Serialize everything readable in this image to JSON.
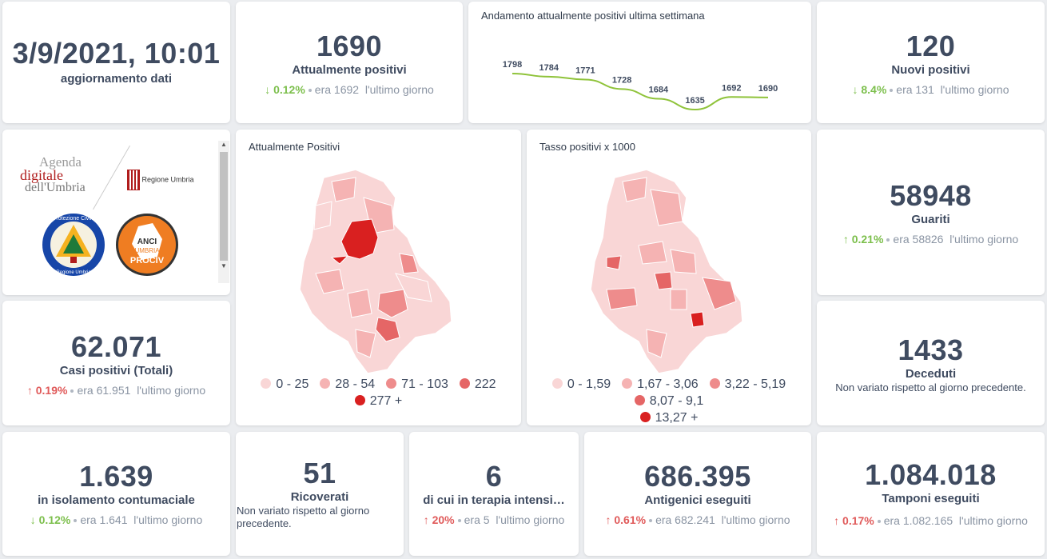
{
  "update": {
    "datetime": "3/9/2021, 10:01",
    "label": "aggiornamento dati"
  },
  "positivi": {
    "value": "1690",
    "label": "Attualmente positivi",
    "pct": "0.12%",
    "prev": "era 1692",
    "period": "l'ultimo giorno",
    "trend": "down"
  },
  "weekly": {
    "title": "Andamento attualmente positivi ultima settimana",
    "chart_data": {
      "type": "line",
      "values": [
        1798,
        1784,
        1771,
        1728,
        1684,
        1635,
        1692,
        1690
      ],
      "color": "#8fc33a"
    }
  },
  "nuovi": {
    "value": "120",
    "label": "Nuovi positivi",
    "pct": "8.4%",
    "prev": "era 131",
    "period": "l'ultimo giorno",
    "trend": "down"
  },
  "logos": {
    "agenda_line1": "Agenda",
    "agenda_line2": "digitale",
    "agenda_line3": "dell'Umbria",
    "regione": "Regione Umbria",
    "protezione": "Protezione Civile",
    "protezione_sub": "Regione Umbria",
    "anci_line1": "ANCI",
    "anci_line2": "UMBRIA",
    "anci_line3": "PROCIV"
  },
  "map1": {
    "title": "Attualmente Positivi",
    "legend": [
      {
        "label": "0 - 25",
        "color": "#f9d6d6"
      },
      {
        "label": "28 - 54",
        "color": "#f5b3b3"
      },
      {
        "label": "71 - 103",
        "color": "#ee8c8c"
      },
      {
        "label": "222",
        "color": "#e56666"
      },
      {
        "label": "277 +",
        "color": "#d92020"
      }
    ]
  },
  "map2": {
    "title": "Tasso positivi x 1000",
    "legend": [
      {
        "label": "0 - 1,59",
        "color": "#f9d6d6"
      },
      {
        "label": "1,67 - 3,06",
        "color": "#f5b3b3"
      },
      {
        "label": "3,22 - 5,19",
        "color": "#ee8c8c"
      },
      {
        "label": "8,07 - 9,1",
        "color": "#e56666"
      },
      {
        "label": "13,27 +",
        "color": "#d92020"
      }
    ]
  },
  "guariti": {
    "value": "58948",
    "label": "Guariti",
    "pct": "0.21%",
    "prev": "era 58826",
    "period": "l'ultimo giorno",
    "trend": "up-green"
  },
  "casi": {
    "value": "62.071",
    "label": "Casi positivi (Totali)",
    "pct": "0.19%",
    "prev": "era 61.951",
    "period": "l'ultimo giorno",
    "trend": "up"
  },
  "deceduti": {
    "value": "1433",
    "label": "Deceduti",
    "note": "Non variato rispetto al giorno precedente."
  },
  "isolamento": {
    "value": "1.639",
    "label": "in isolamento contumaciale",
    "pct": "0.12%",
    "prev": "era 1.641",
    "period": "l'ultimo giorno",
    "trend": "down"
  },
  "ricoverati": {
    "value": "51",
    "label": "Ricoverati",
    "note": "Non variato rispetto al giorno precedente."
  },
  "terapia": {
    "value": "6",
    "label": "di cui in terapia intensi…",
    "pct": "20%",
    "prev": "era 5",
    "period": "l'ultimo giorno",
    "trend": "up"
  },
  "antigenici": {
    "value": "686.395",
    "label": "Antigenici eseguiti",
    "pct": "0.61%",
    "prev": "era 682.241",
    "period": "l'ultimo giorno",
    "trend": "up"
  },
  "tamponi": {
    "value": "1.084.018",
    "label": "Tamponi eseguiti",
    "pct": "0.17%",
    "prev": "era 1.082.165",
    "period": "l'ultimo giorno",
    "trend": "up"
  }
}
